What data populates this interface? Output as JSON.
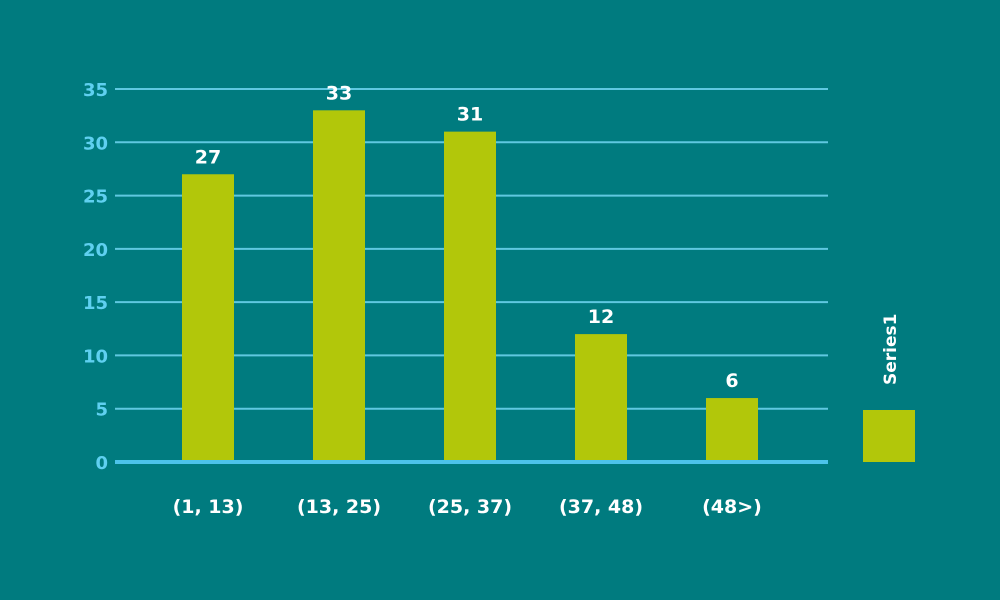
{
  "colors": {
    "background": "#007b7f",
    "bar": "#b2c70a",
    "grid": "#5fc8e0",
    "axis": "#4cc3ea",
    "tick_text": "#5fd0f0",
    "label_text": "#ffffff"
  },
  "chart_data": {
    "type": "bar",
    "categories": [
      "(1, 13)",
      "(13, 25)",
      "(25, 37)",
      "(37, 48)",
      "(48>)"
    ],
    "series": [
      {
        "name": "Series1",
        "values": [
          27,
          33,
          31,
          12,
          6
        ]
      }
    ],
    "data_labels": [
      "27",
      "33",
      "31",
      "12",
      "6"
    ],
    "y_ticks": [
      "0",
      "5",
      "10",
      "15",
      "20",
      "25",
      "30",
      "35"
    ],
    "ylim": [
      0,
      35
    ],
    "grid": true,
    "legend_position": "right",
    "legend_label": "Series1"
  }
}
